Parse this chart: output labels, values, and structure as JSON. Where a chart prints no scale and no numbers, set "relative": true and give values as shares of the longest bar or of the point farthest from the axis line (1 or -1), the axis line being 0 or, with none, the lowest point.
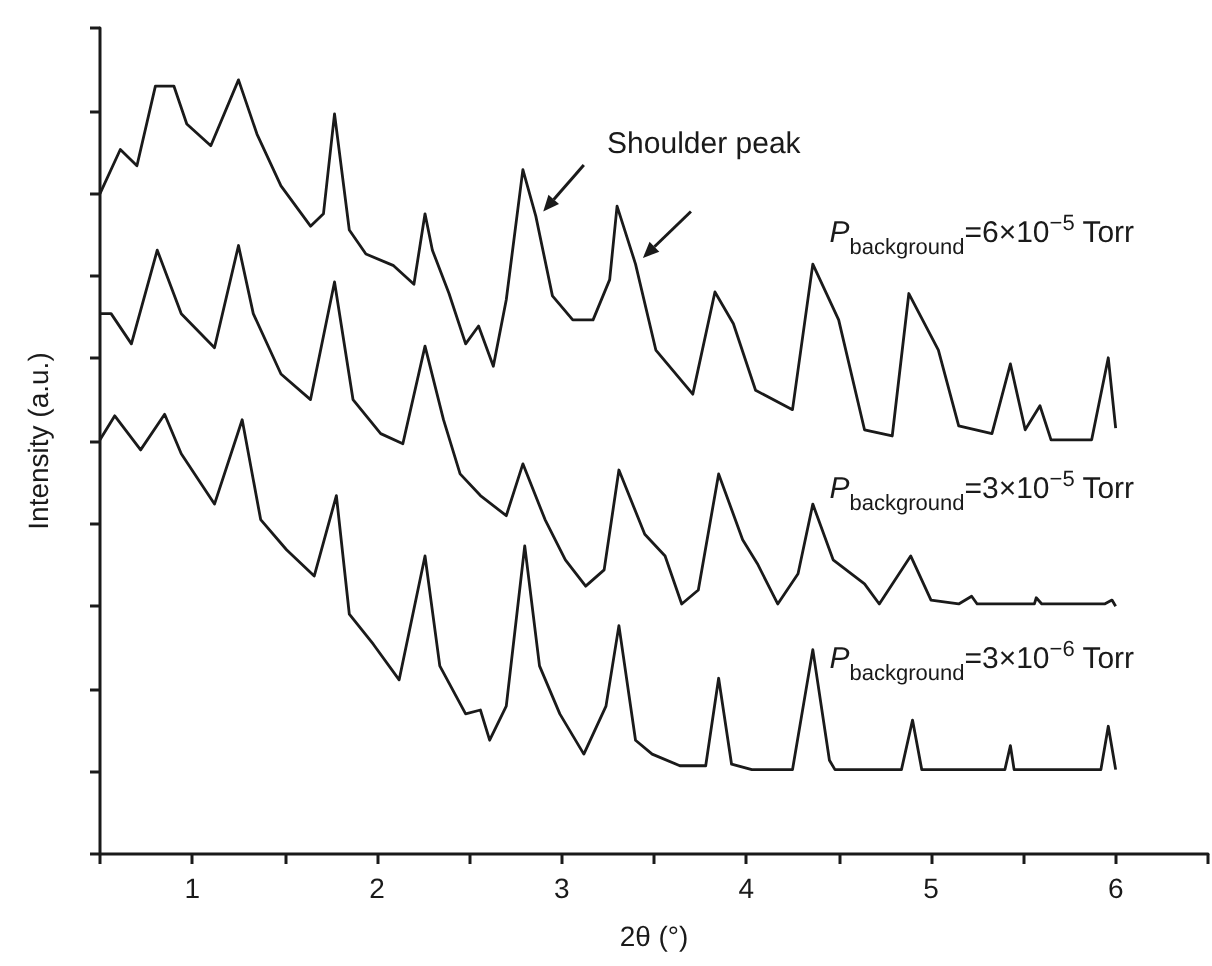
{
  "chart_data": {
    "type": "line",
    "relative": true,
    "xlabel": "2θ (°)",
    "ylabel": "Intensity (a.u.)",
    "xlim": [
      0.5,
      6.5
    ],
    "xticks": [
      1,
      2,
      3,
      4,
      5,
      6
    ],
    "annotations": [
      "Shoulder peak"
    ],
    "series": [
      {
        "name": "P$_{background}$=6×10$^{−5}$ Torr",
        "color": "#1a1a1a",
        "x": [
          0.5,
          0.61,
          0.7,
          0.8,
          0.9,
          0.97,
          1.1,
          1.25,
          1.35,
          1.48,
          1.64,
          1.71,
          1.77,
          1.85,
          1.94,
          2.09,
          2.2,
          2.26,
          2.3,
          2.39,
          2.48,
          2.55,
          2.63,
          2.7,
          2.79,
          2.86,
          2.95,
          3.06,
          3.17,
          3.26,
          3.3,
          3.4,
          3.51,
          3.71,
          3.83,
          3.93,
          4.05,
          4.25,
          4.36,
          4.5,
          4.64,
          4.79,
          4.88,
          5.04,
          5.15,
          5.33,
          5.43,
          5.51,
          5.59,
          5.65,
          5.87,
          5.96,
          6.0
        ],
        "values": [
          0.853,
          0.91,
          0.889,
          0.992,
          0.992,
          0.943,
          0.915,
          1,
          0.93,
          0.863,
          0.811,
          0.827,
          0.956,
          0.806,
          0.775,
          0.76,
          0.736,
          0.827,
          0.78,
          0.724,
          0.659,
          0.682,
          0.63,
          0.716,
          0.884,
          0.824,
          0.721,
          0.69,
          0.69,
          0.742,
          0.837,
          0.762,
          0.651,
          0.594,
          0.726,
          0.685,
          0.599,
          0.574,
          0.762,
          0.69,
          0.548,
          0.54,
          0.724,
          0.651,
          0.553,
          0.543,
          0.633,
          0.548,
          0.579,
          0.535,
          0.535,
          0.641,
          0.55
        ]
      },
      {
        "name": "P$_{background}$=3×10$^{−5}$ Torr",
        "color": "#1a1a1a",
        "x": [
          0.5,
          0.56,
          0.67,
          0.81,
          0.94,
          1.12,
          1.25,
          1.33,
          1.48,
          1.64,
          1.77,
          1.87,
          2.02,
          2.14,
          2.26,
          2.36,
          2.45,
          2.56,
          2.7,
          2.79,
          2.91,
          3.02,
          3.13,
          3.23,
          3.31,
          3.45,
          3.56,
          3.65,
          3.74,
          3.85,
          3.98,
          4.06,
          4.17,
          4.28,
          4.36,
          4.47,
          4.64,
          4.72,
          4.89,
          5.0,
          5.15,
          5.22,
          5.25,
          5.56,
          5.57,
          5.6,
          5.94,
          5.98,
          6.0
        ],
        "values": [
          0.698,
          0.698,
          0.659,
          0.78,
          0.698,
          0.654,
          0.786,
          0.698,
          0.62,
          0.587,
          0.739,
          0.587,
          0.543,
          0.53,
          0.656,
          0.561,
          0.491,
          0.463,
          0.437,
          0.504,
          0.432,
          0.38,
          0.346,
          0.367,
          0.496,
          0.413,
          0.385,
          0.323,
          0.341,
          0.491,
          0.406,
          0.375,
          0.323,
          0.362,
          0.452,
          0.38,
          0.349,
          0.323,
          0.385,
          0.328,
          0.323,
          0.333,
          0.323,
          0.323,
          0.331,
          0.323,
          0.323,
          0.328,
          0.32
        ]
      },
      {
        "name": "P$_{background}$=3×10$^{−6}$ Torr",
        "color": "#1a1a1a",
        "x": [
          0.5,
          0.58,
          0.72,
          0.85,
          0.94,
          1.12,
          1.27,
          1.37,
          1.51,
          1.66,
          1.78,
          1.85,
          1.98,
          2.12,
          2.26,
          2.34,
          2.48,
          2.56,
          2.61,
          2.7,
          2.8,
          2.88,
          2.99,
          3.12,
          3.24,
          3.31,
          3.4,
          3.49,
          3.64,
          3.78,
          3.85,
          3.92,
          4.03,
          4.25,
          4.36,
          4.45,
          4.48,
          4.84,
          4.9,
          4.95,
          5.4,
          5.43,
          5.45,
          5.92,
          5.96,
          6.0
        ],
        "values": [
          0.535,
          0.566,
          0.522,
          0.568,
          0.517,
          0.452,
          0.561,
          0.432,
          0.393,
          0.359,
          0.463,
          0.31,
          0.271,
          0.225,
          0.385,
          0.243,
          0.181,
          0.186,
          0.147,
          0.191,
          0.398,
          0.243,
          0.181,
          0.129,
          0.191,
          0.295,
          0.147,
          0.129,
          0.114,
          0.114,
          0.227,
          0.116,
          0.109,
          0.109,
          0.264,
          0.121,
          0.109,
          0.109,
          0.173,
          0.109,
          0.109,
          0.14,
          0.109,
          0.109,
          0.165,
          0.109
        ]
      }
    ]
  }
}
